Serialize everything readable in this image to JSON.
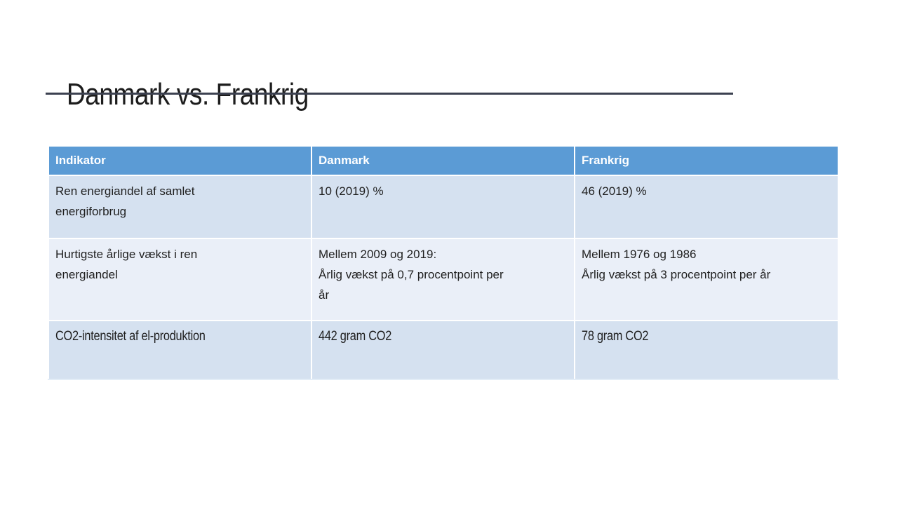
{
  "slide": {
    "title": "Danmark vs. Frankrig",
    "background_color": "#FFFFFF",
    "title_underline_color": "#3C4150"
  },
  "table": {
    "headers": {
      "indicator": "Indikator",
      "denmark": "Danmark",
      "france": "Frankrig"
    },
    "rows": [
      {
        "indikator": "Ren energiandel af samlet\nenergiforbrug",
        "danmark": "10 (2019) %",
        "frankrig": "46 (2019) %"
      },
      {
        "indikator": "Hurtigste årlige vækst i ren\nenergiandel",
        "danmark": "Mellem 2009 og 2019:\nÅrlig vækst på 0,7 procentpoint per\når",
        "frankrig": "Mellem 1976 og 1986\nÅrlig vækst på 3 procentpoint per år"
      },
      {
        "indikator": "CO2-intensitet af el-produktion",
        "danmark": "442 gram CO2",
        "frankrig": "78 gram CO2"
      }
    ],
    "colors": {
      "header_bg": "#5B9BD5",
      "header_text": "#FFFFFF",
      "band_a_bg": "#D5E1F0",
      "band_b_bg": "#EAEFF8",
      "body_text": "#1F1F1F"
    }
  }
}
